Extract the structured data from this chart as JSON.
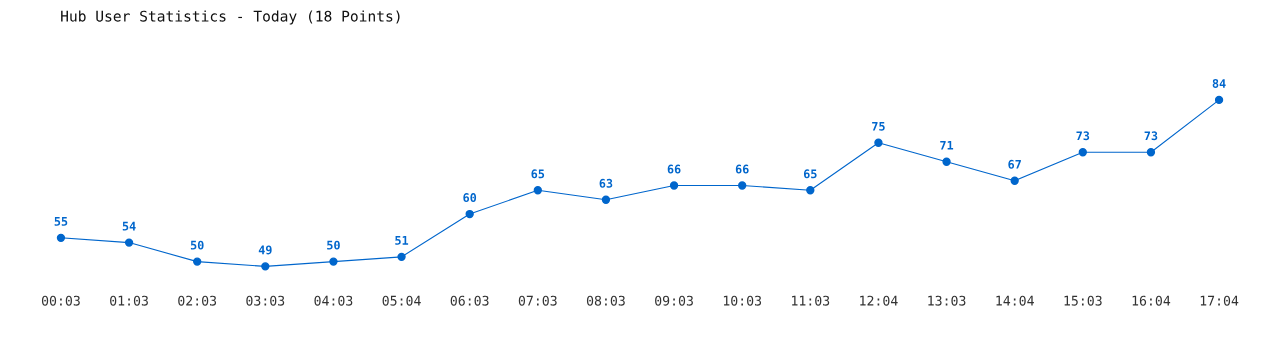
{
  "chart_data": {
    "type": "line",
    "title": "Hub User Statistics - Today (18 Points)",
    "categories": [
      "00:03",
      "01:03",
      "02:03",
      "03:03",
      "04:03",
      "05:04",
      "06:03",
      "07:03",
      "08:03",
      "09:03",
      "10:03",
      "11:03",
      "12:04",
      "13:03",
      "14:04",
      "15:03",
      "16:04",
      "17:04"
    ],
    "series": [
      {
        "color": "#0066cc",
        "values": [
          55,
          54,
          50,
          49,
          50,
          51,
          60,
          65,
          63,
          66,
          66,
          65,
          75,
          71,
          67,
          73,
          73,
          84
        ]
      }
    ],
    "data_labels": true,
    "marker": "circle",
    "line_style": "solid",
    "grid": false,
    "legend": false,
    "tick_labels": "x"
  }
}
